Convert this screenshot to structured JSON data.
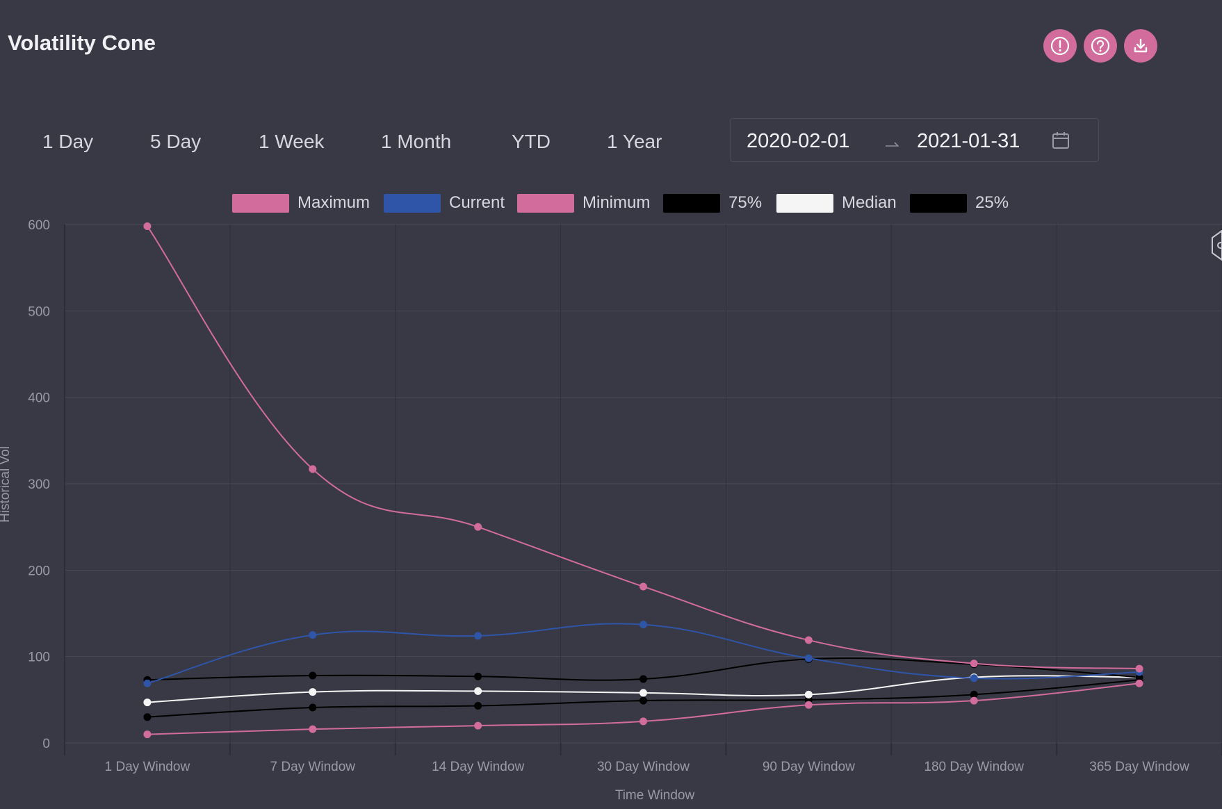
{
  "header": {
    "title": "Volatility Cone"
  },
  "toolbar": {
    "icons": [
      "alert-icon",
      "help-icon",
      "download-icon"
    ],
    "accent_color": "#d16c9c"
  },
  "range_buttons": [
    "1 Day",
    "5 Day",
    "1 Week",
    "1 Month",
    "YTD",
    "1 Year"
  ],
  "date_range": {
    "start": "2020-02-01",
    "end": "2021-01-31",
    "icon": "calendar-icon"
  },
  "chart_data": {
    "type": "line",
    "xlabel": "Time Window",
    "ylabel": "Historical Vol",
    "ylim": [
      0,
      600
    ],
    "yticks": [
      0,
      100,
      200,
      300,
      400,
      500,
      600
    ],
    "grid": true,
    "legend_position": "top",
    "categories": [
      "1 Day Window",
      "7 Day Window",
      "14 Day Window",
      "30 Day Window",
      "90 Day Window",
      "180 Day Window",
      "365 Day Window"
    ],
    "series": [
      {
        "name": "Maximum",
        "color": "#d16c9c",
        "values": [
          598,
          317,
          250,
          181,
          119,
          92,
          86
        ]
      },
      {
        "name": "Current",
        "color": "#2f55a8",
        "values": [
          69,
          125,
          124,
          137,
          98,
          75,
          82
        ]
      },
      {
        "name": "Minimum",
        "color": "#d16c9c",
        "values": [
          10,
          16,
          20,
          25,
          44,
          49,
          69
        ]
      },
      {
        "name": "75%",
        "color": "#000000",
        "values": [
          73,
          78,
          77,
          74,
          97,
          91,
          76
        ]
      },
      {
        "name": "Median",
        "color": "#f5f5f5",
        "values": [
          47,
          59,
          60,
          58,
          56,
          76,
          76
        ]
      },
      {
        "name": "25%",
        "color": "#000000",
        "values": [
          30,
          41,
          43,
          49,
          50,
          56,
          73
        ]
      }
    ]
  }
}
